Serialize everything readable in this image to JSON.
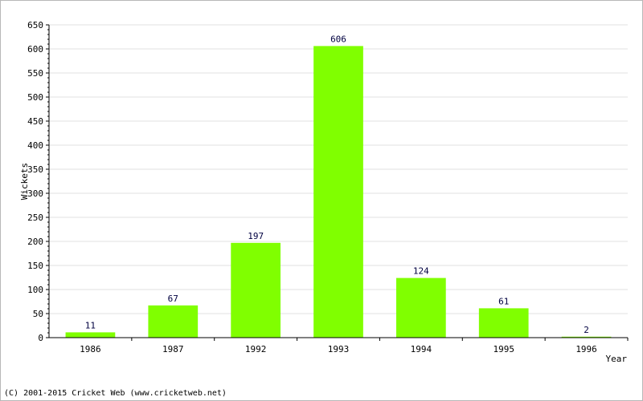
{
  "chart_data": {
    "type": "bar",
    "categories": [
      "1986",
      "1987",
      "1992",
      "1993",
      "1994",
      "1995",
      "1996"
    ],
    "values": [
      11,
      67,
      197,
      606,
      124,
      61,
      2
    ],
    "xlabel": "Year",
    "ylabel": "Wickets",
    "ylim": [
      0,
      650
    ],
    "yticks": [
      0,
      50,
      100,
      150,
      200,
      250,
      300,
      350,
      400,
      450,
      500,
      550,
      600,
      650
    ],
    "grid": true,
    "legend": "none",
    "bar_color": "#80ff00",
    "label_color": "#000040"
  },
  "footer": {
    "copyright": "(C) 2001-2015 Cricket Web (www.cricketweb.net)"
  }
}
